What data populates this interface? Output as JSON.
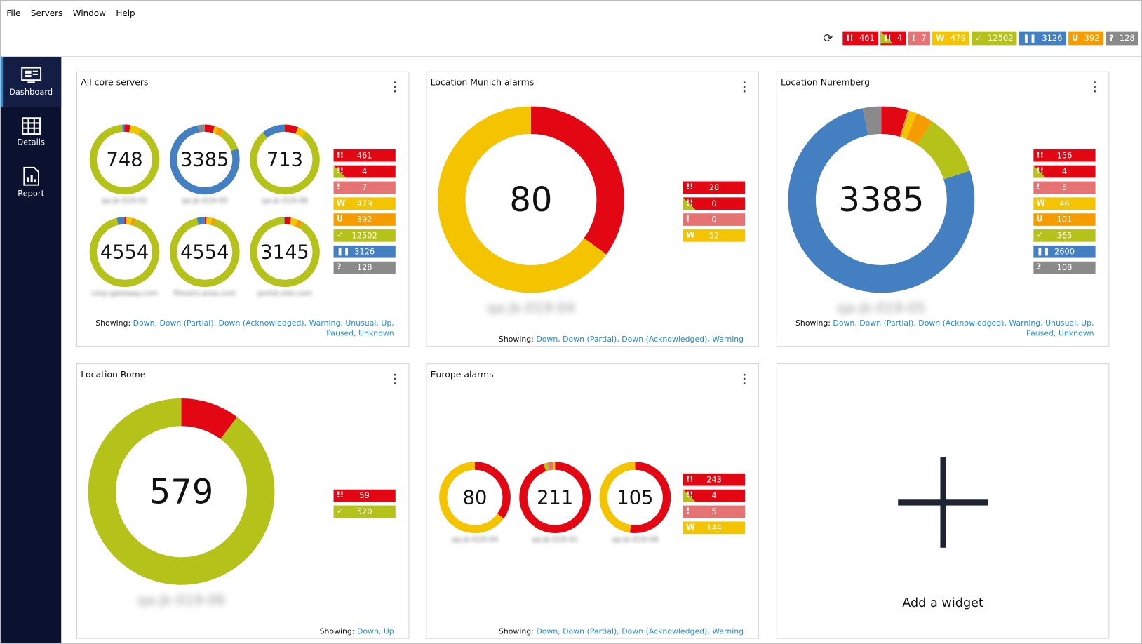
{
  "menu": [
    "File",
    "Servers",
    "Window",
    "Help"
  ],
  "colors": {
    "down": "#e30613",
    "partial": "#e30613",
    "partial_accent": "#b5c21a",
    "ack": "#e57373",
    "warning": "#f5c400",
    "unusual": "#f59c00",
    "up": "#b5c21a",
    "paused": "#447fc1",
    "unknown": "#8a8a8a"
  },
  "icons": {
    "down": "!!",
    "partial": "!!",
    "ack": "!",
    "warning": "W",
    "unusual": "U",
    "up": "✓",
    "paused": "❚❚",
    "unknown": "?"
  },
  "status_totals": [
    {
      "key": "down",
      "value": "461"
    },
    {
      "key": "partial",
      "value": "4"
    },
    {
      "key": "ack",
      "value": "7"
    },
    {
      "key": "warning",
      "value": "479"
    },
    {
      "key": "up",
      "value": "12502"
    },
    {
      "key": "paused",
      "value": "3126"
    },
    {
      "key": "unusual",
      "value": "392"
    },
    {
      "key": "unknown",
      "value": "128"
    }
  ],
  "sidebar": [
    {
      "label": "Dashboard",
      "icon": "monitor-icon",
      "active": true
    },
    {
      "label": "Details",
      "icon": "grid-icon"
    },
    {
      "label": "Report",
      "icon": "report-icon"
    }
  ],
  "panels": [
    {
      "title": "All core servers",
      "showing_label": "Showing:",
      "showing": "Down, Down (Partial), Down (Acknowledged), Warning, Unusual, Up, Paused, Unknown",
      "legend": [
        {
          "key": "down",
          "value": "461"
        },
        {
          "key": "partial",
          "value": "4"
        },
        {
          "key": "ack",
          "value": "7"
        },
        {
          "key": "warning",
          "value": "479"
        },
        {
          "key": "unusual",
          "value": "392"
        },
        {
          "key": "up",
          "value": "12502"
        },
        {
          "key": "paused",
          "value": "3126"
        },
        {
          "key": "unknown",
          "value": "128"
        }
      ],
      "donuts": [
        {
          "total": "748",
          "label": "qa-jk-019-01",
          "segments": {
            "down": 20,
            "warning": 40,
            "up": 680,
            "paused": 8
          }
        },
        {
          "total": "3385",
          "label": "qa-jk-019-05",
          "segments": {
            "down": 156,
            "partial": 4,
            "ack": 5,
            "warning": 46,
            "unusual": 101,
            "up": 365,
            "paused": 2600,
            "unknown": 108
          }
        },
        {
          "total": "713",
          "label": "qa-jk-019-06",
          "segments": {
            "down": 45,
            "warning": 30,
            "up": 560,
            "paused": 78
          }
        },
        {
          "total": "4554",
          "label": "corp-gateway.com",
          "segments": {
            "down": 40,
            "warning": 120,
            "unusual": 80,
            "up": 4150,
            "paused": 164
          }
        },
        {
          "total": "4554",
          "label": "fileserv.area.com",
          "segments": {
            "down": 40,
            "warning": 120,
            "unusual": 80,
            "up": 4150,
            "paused": 164
          }
        },
        {
          "total": "3145",
          "label": "portal.site.com",
          "segments": {
            "down": 90,
            "warning": 100,
            "unusual": 80,
            "up": 2865,
            "paused": 10
          }
        }
      ]
    },
    {
      "title": "Location Munich alarms",
      "showing_label": "Showing:",
      "showing": "Down, Down (Partial), Down (Acknowledged), Warning",
      "legend": [
        {
          "key": "down",
          "value": "28"
        },
        {
          "key": "partial",
          "value": "0"
        },
        {
          "key": "ack",
          "value": "0"
        },
        {
          "key": "warning",
          "value": "52"
        }
      ],
      "donuts": [
        {
          "total": "80",
          "label": "qa-jk-019-04",
          "segments": {
            "down": 28,
            "warning": 52
          }
        }
      ]
    },
    {
      "title": "Location Nuremberg",
      "showing_label": "Showing:",
      "showing": "Down, Down (Partial), Down (Acknowledged), Warning, Unusual, Up, Paused, Unknown",
      "legend": [
        {
          "key": "down",
          "value": "156"
        },
        {
          "key": "partial",
          "value": "4"
        },
        {
          "key": "ack",
          "value": "5"
        },
        {
          "key": "warning",
          "value": "46"
        },
        {
          "key": "unusual",
          "value": "101"
        },
        {
          "key": "up",
          "value": "365"
        },
        {
          "key": "paused",
          "value": "2600"
        },
        {
          "key": "unknown",
          "value": "108"
        }
      ],
      "donuts": [
        {
          "total": "3385",
          "label": "qa-jk-019-05",
          "segments": {
            "down": 156,
            "partial": 4,
            "ack": 5,
            "warning": 46,
            "unusual": 101,
            "up": 365,
            "paused": 2600,
            "unknown": 108
          }
        }
      ]
    },
    {
      "title": "Location Rome",
      "showing_label": "Showing:",
      "showing": "Down, Up",
      "legend": [
        {
          "key": "down",
          "value": "59"
        },
        {
          "key": "up",
          "value": "520"
        }
      ],
      "donuts": [
        {
          "total": "579",
          "label": "qa-jk-019-06",
          "segments": {
            "down": 59,
            "up": 520
          }
        }
      ]
    },
    {
      "title": "Europe alarms",
      "showing_label": "Showing:",
      "showing": "Down, Down (Partial), Down (Acknowledged), Warning",
      "legend": [
        {
          "key": "down",
          "value": "243"
        },
        {
          "key": "partial",
          "value": "4"
        },
        {
          "key": "ack",
          "value": "5"
        },
        {
          "key": "warning",
          "value": "144"
        }
      ],
      "donuts": [
        {
          "total": "80",
          "label": "qa-jk-019-04",
          "segments": {
            "down": 28,
            "warning": 52
          }
        },
        {
          "total": "211",
          "label": "qa-jk-019-01",
          "segments": {
            "down": 200,
            "partial": 4,
            "ack": 5,
            "warning": 2
          }
        },
        {
          "total": "105",
          "label": "qa-jk-019-08",
          "segments": {
            "down": 55,
            "warning": 50
          }
        }
      ]
    }
  ],
  "add_widget": "Add a widget"
}
